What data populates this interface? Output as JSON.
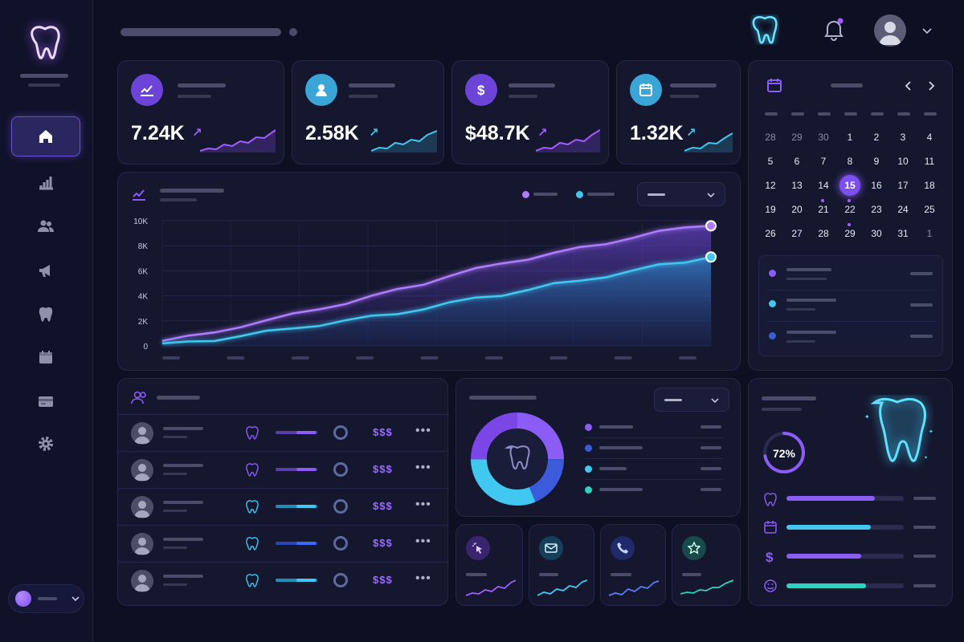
{
  "stats": [
    {
      "value": "7.24K",
      "arrow": "↗",
      "color": "#a45cff"
    },
    {
      "value": "2.58K",
      "arrow": "↗",
      "color": "#40c8f0"
    },
    {
      "value": "$48.7K",
      "arrow": "↗",
      "color": "#a45cff"
    },
    {
      "value": "1.32K",
      "arrow": "↗",
      "color": "#40c8f0"
    }
  ],
  "stat_icons": [
    "line-chart-icon",
    "user-icon",
    "dollar-icon",
    "calendar-icon"
  ],
  "chart_data": {
    "type": "area",
    "y_ticks": [
      "10K",
      "8K",
      "6K",
      "4K",
      "2K",
      "0"
    ],
    "ylim": [
      0,
      10000
    ],
    "series": [
      {
        "color": "#b07cff",
        "values": [
          400,
          700,
          1100,
          1600,
          2000,
          2500,
          3000,
          3400,
          3900,
          4500,
          5000,
          5600,
          6100,
          6600,
          7000,
          7400,
          7800,
          8200,
          8700,
          9100,
          9400,
          9700
        ]
      },
      {
        "color": "#40c8f0",
        "values": [
          100,
          300,
          500,
          800,
          1100,
          1400,
          1700,
          2000,
          2300,
          2600,
          3000,
          3400,
          3800,
          4100,
          4500,
          4900,
          5200,
          5600,
          6000,
          6400,
          6700,
          7200
        ]
      }
    ],
    "grid": true
  },
  "calendar": {
    "rows": [
      [
        "28",
        "29",
        "30",
        "1",
        "2",
        "3",
        "4"
      ],
      [
        "5",
        "6",
        "7",
        "8",
        "9",
        "10",
        "11"
      ],
      [
        "12",
        "13",
        "14",
        "15",
        "16",
        "17",
        "18"
      ],
      [
        "19",
        "20",
        "21",
        "22",
        "23",
        "24",
        "25"
      ],
      [
        "26",
        "27",
        "28",
        "29",
        "30",
        "31",
        "1"
      ]
    ],
    "selected": "15"
  },
  "table": {
    "currency": "$$$",
    "more": "•••",
    "rows": 5
  },
  "progress": {
    "percent": "72%",
    "value": 0.72
  },
  "colors": {
    "accent": "#8b5cf6",
    "cyan": "#40c8f0",
    "blue": "#3b5bdb",
    "teal": "#2dd4bf"
  }
}
